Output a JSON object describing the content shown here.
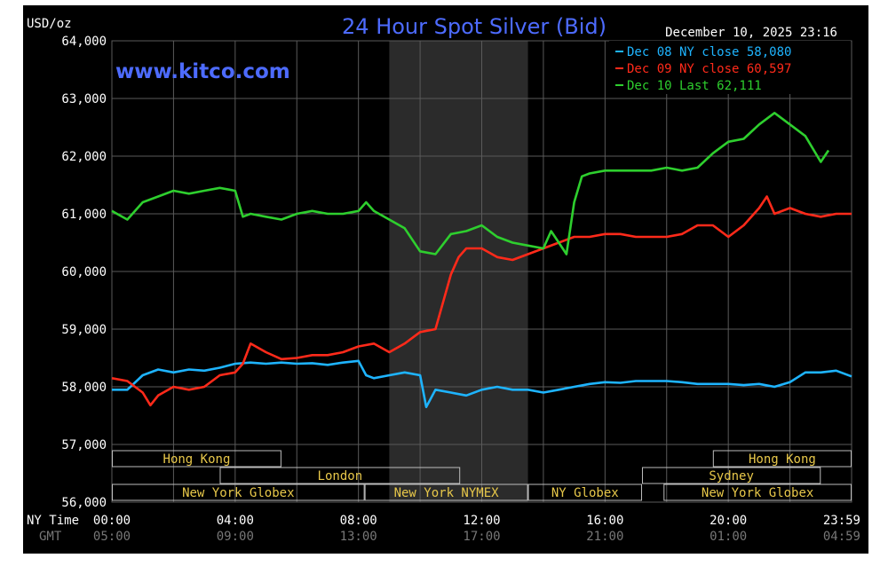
{
  "header": {
    "title": "24 Hour Spot Silver (Bid)",
    "unit": "USD/oz",
    "timestamp": "December 10, 2025 23:16",
    "watermark": "www.kitco.com"
  },
  "legend": [
    {
      "label": "Dec 08 NY close 58,080",
      "color": "#1eb4ff"
    },
    {
      "label": "Dec 09 NY close 60,597",
      "color": "#ff2a1a"
    },
    {
      "label": "Dec 10 Last 62,111",
      "color": "#2ecf2e"
    }
  ],
  "time_axis": {
    "ny_label": "NY Time",
    "gmt_label": "GMT",
    "ny_ticks": [
      "00:00",
      "04:00",
      "08:00",
      "12:00",
      "16:00",
      "20:00",
      "23:59"
    ],
    "gmt_ticks": [
      "05:00",
      "09:00",
      "13:00",
      "17:00",
      "21:00",
      "01:00",
      "04:59"
    ]
  },
  "sessions": {
    "row1": [
      {
        "label": "Hong Kong"
      },
      {
        "label": "Hong Kong"
      }
    ],
    "row2": [
      {
        "label": "London"
      },
      {
        "label": "Sydney"
      }
    ],
    "row3": [
      {
        "label": "New York Globex"
      },
      {
        "label": "New York NYMEX"
      },
      {
        "label": "NY Globex"
      },
      {
        "label": "New York Globex"
      }
    ]
  },
  "colors": {
    "background": "#000000",
    "grid": "#5a5a5a",
    "shade": "#2b2b2b",
    "title": "#4d6bff",
    "axis_text": "#ffffff",
    "gmt_text": "#777777",
    "session_text": "#e8c84a",
    "dec08": "#1eb4ff",
    "dec09": "#ff2a1a",
    "dec10": "#2ecf2e"
  },
  "chart_data": {
    "type": "line",
    "title": "24 Hour Spot Silver (Bid)",
    "ylabel": "USD/oz",
    "xlabel": "",
    "ylim": [
      56000,
      64000
    ],
    "xlim": [
      0,
      24
    ],
    "y_ticks": [
      "64,000",
      "63,000",
      "62,000",
      "61,000",
      "60,000",
      "59,000",
      "58,000",
      "57,000",
      "56,000"
    ],
    "y_tick_values": [
      64000,
      63000,
      62000,
      61000,
      60000,
      59000,
      58000,
      57000,
      56000
    ],
    "grid": true,
    "legend_position": "top-right",
    "shaded_hours": [
      9,
      13.5
    ],
    "series": [
      {
        "name": "Dec 08 NY close 58,080",
        "x": [
          0,
          0.5,
          1,
          1.5,
          2,
          2.5,
          3,
          3.5,
          4,
          4.5,
          5,
          5.5,
          6,
          6.5,
          7,
          7.5,
          8,
          8.25,
          8.5,
          9,
          9.5,
          10,
          10.2,
          10.5,
          11,
          11.5,
          12,
          12.5,
          13,
          13.5,
          14,
          14.5,
          15,
          15.5,
          16,
          16.5,
          17,
          17.5,
          18,
          18.5,
          19,
          19.5,
          20,
          20.5,
          21,
          21.5,
          22,
          22.5,
          23,
          23.5,
          24
        ],
        "y": [
          57950,
          57950,
          58200,
          58300,
          58250,
          58300,
          58280,
          58330,
          58400,
          58420,
          58400,
          58420,
          58400,
          58410,
          58380,
          58420,
          58450,
          58200,
          58150,
          58200,
          58250,
          58200,
          57650,
          57950,
          57900,
          57850,
          57950,
          58000,
          57950,
          57950,
          57900,
          57950,
          58000,
          58050,
          58080,
          58070,
          58100,
          58100,
          58100,
          58080,
          58050,
          58050,
          58050,
          58030,
          58050,
          58000,
          58080,
          58250,
          58250,
          58280,
          58180
        ]
      },
      {
        "name": "Dec 09 NY close 60,597",
        "x": [
          0,
          0.5,
          1,
          1.25,
          1.5,
          2,
          2.5,
          3,
          3.5,
          4,
          4.25,
          4.5,
          5,
          5.5,
          6,
          6.5,
          7,
          7.5,
          8,
          8.5,
          9,
          9.5,
          10,
          10.5,
          11,
          11.25,
          11.5,
          12,
          12.5,
          13,
          13.5,
          14,
          14.5,
          15,
          15.5,
          16,
          16.5,
          17,
          17.5,
          18,
          18.5,
          19,
          19.5,
          20,
          20.5,
          21,
          21.25,
          21.5,
          22,
          22.5,
          23,
          23.5,
          24
        ],
        "y": [
          58150,
          58100,
          57900,
          57680,
          57850,
          58000,
          57950,
          58000,
          58200,
          58250,
          58400,
          58750,
          58600,
          58480,
          58500,
          58550,
          58550,
          58600,
          58700,
          58750,
          58600,
          58750,
          58950,
          59000,
          59950,
          60250,
          60400,
          60400,
          60250,
          60200,
          60300,
          60400,
          60500,
          60600,
          60600,
          60650,
          60650,
          60600,
          60600,
          60600,
          60650,
          60800,
          60800,
          60600,
          60800,
          61100,
          61300,
          61000,
          61100,
          61000,
          60950,
          61000,
          61000
        ]
      },
      {
        "name": "Dec 10 Last 62,111",
        "x": [
          0,
          0.5,
          1,
          1.5,
          2,
          2.5,
          3,
          3.5,
          4,
          4.25,
          4.5,
          5,
          5.5,
          6,
          6.5,
          7,
          7.5,
          8,
          8.25,
          8.5,
          9,
          9.5,
          10,
          10.5,
          11,
          11.5,
          12,
          12.5,
          13,
          13.5,
          14,
          14.25,
          14.5,
          14.75,
          15,
          15.25,
          15.5,
          16,
          16.5,
          17,
          17.5,
          18,
          18.5,
          19,
          19.5,
          20,
          20.5,
          21,
          21.5,
          22,
          22.5,
          23,
          23.25
        ],
        "y": [
          61050,
          60900,
          61200,
          61300,
          61400,
          61350,
          61400,
          61450,
          61400,
          60950,
          61000,
          60950,
          60900,
          61000,
          61050,
          61000,
          61000,
          61050,
          61200,
          61050,
          60900,
          60750,
          60350,
          60300,
          60650,
          60700,
          60800,
          60600,
          60500,
          60450,
          60400,
          60700,
          60500,
          60300,
          61200,
          61650,
          61700,
          61750,
          61750,
          61750,
          61750,
          61800,
          61750,
          61800,
          62050,
          62250,
          62300,
          62550,
          62750,
          62550,
          62350,
          61900,
          62100
        ]
      }
    ]
  }
}
